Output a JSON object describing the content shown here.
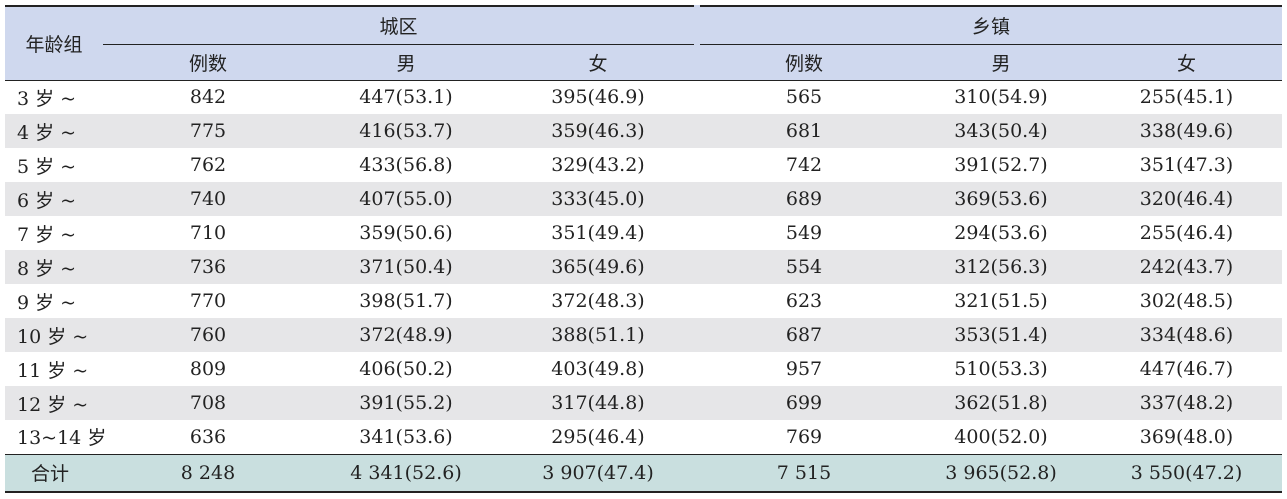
{
  "header": {
    "age_group": "年龄组",
    "urban": "城区",
    "rural": "乡镇",
    "sub": [
      "例数",
      "男",
      "女",
      "例数",
      "男",
      "女"
    ]
  },
  "rows": [
    {
      "age": "3 岁 ~",
      "u_n": "842",
      "u_m": "447(53.1)",
      "u_f": "395(46.9)",
      "r_n": "565",
      "r_m": "310(54.9)",
      "r_f": "255(45.1)"
    },
    {
      "age": "4 岁 ~",
      "u_n": "775",
      "u_m": "416(53.7)",
      "u_f": "359(46.3)",
      "r_n": "681",
      "r_m": "343(50.4)",
      "r_f": "338(49.6)"
    },
    {
      "age": "5 岁 ~",
      "u_n": "762",
      "u_m": "433(56.8)",
      "u_f": "329(43.2)",
      "r_n": "742",
      "r_m": "391(52.7)",
      "r_f": "351(47.3)"
    },
    {
      "age": "6 岁 ~",
      "u_n": "740",
      "u_m": "407(55.0)",
      "u_f": "333(45.0)",
      "r_n": "689",
      "r_m": "369(53.6)",
      "r_f": "320(46.4)"
    },
    {
      "age": "7 岁 ~",
      "u_n": "710",
      "u_m": "359(50.6)",
      "u_f": "351(49.4)",
      "r_n": "549",
      "r_m": "294(53.6)",
      "r_f": "255(46.4)"
    },
    {
      "age": "8 岁 ~",
      "u_n": "736",
      "u_m": "371(50.4)",
      "u_f": "365(49.6)",
      "r_n": "554",
      "r_m": "312(56.3)",
      "r_f": "242(43.7)"
    },
    {
      "age": "9 岁 ~",
      "u_n": "770",
      "u_m": "398(51.7)",
      "u_f": "372(48.3)",
      "r_n": "623",
      "r_m": "321(51.5)",
      "r_f": "302(48.5)"
    },
    {
      "age": "10 岁 ~",
      "u_n": "760",
      "u_m": "372(48.9)",
      "u_f": "388(51.1)",
      "r_n": "687",
      "r_m": "353(51.4)",
      "r_f": "334(48.6)"
    },
    {
      "age": "11 岁 ~",
      "u_n": "809",
      "u_m": "406(50.2)",
      "u_f": "403(49.8)",
      "r_n": "957",
      "r_m": "510(53.3)",
      "r_f": "447(46.7)"
    },
    {
      "age": "12 岁 ~",
      "u_n": "708",
      "u_m": "391(55.2)",
      "u_f": "317(44.8)",
      "r_n": "699",
      "r_m": "362(51.8)",
      "r_f": "337(48.2)"
    },
    {
      "age": "13~14 岁",
      "u_n": "636",
      "u_m": "341(53.6)",
      "u_f": "295(46.4)",
      "r_n": "769",
      "r_m": "400(52.0)",
      "r_f": "369(48.0)"
    }
  ],
  "total": {
    "age": "合计",
    "u_n": "8 248",
    "u_m": "4 341(52.6)",
    "u_f": "3 907(47.4)",
    "r_n": "7 515",
    "r_m": "3 965(52.8)",
    "r_f": "3 550(47.2)"
  },
  "colors": {
    "header_bg": "#cfd8ee",
    "alt_row_bg": "#e6e6e8",
    "total_bg": "#c9dfdf"
  }
}
